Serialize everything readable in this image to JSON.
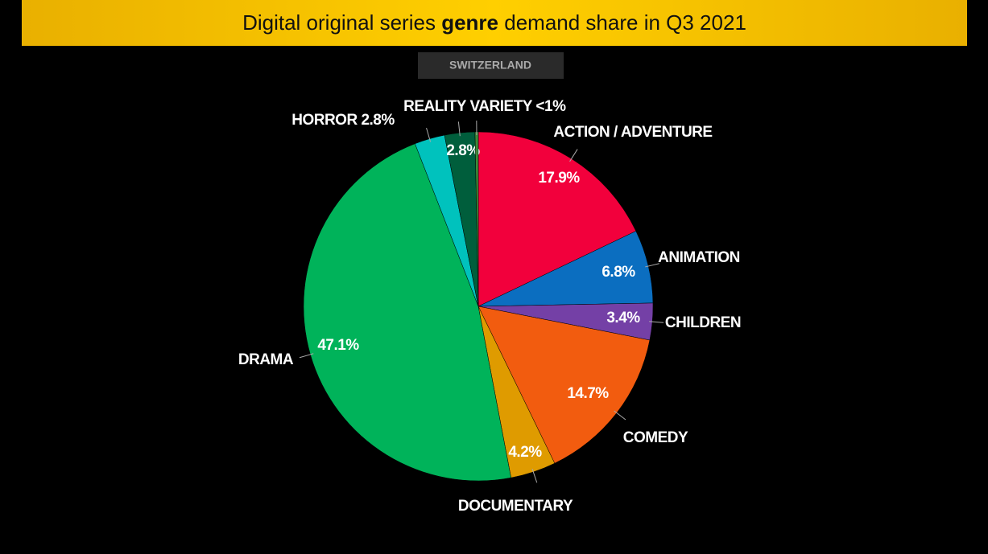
{
  "chart_data": {
    "type": "pie",
    "title": {
      "start": "Digital original series",
      "emphasis": "genre",
      "end": "demand share in Q3 2021"
    },
    "subtitle": "SWITZERLAND",
    "categories": [
      "ACTION / ADVENTURE",
      "ANIMATION",
      "CHILDREN",
      "COMEDY",
      "DOCUMENTARY",
      "DRAMA",
      "HORROR",
      "REALITY",
      "VARIETY"
    ],
    "values": [
      17.9,
      6.8,
      3.4,
      14.7,
      4.2,
      47.1,
      2.8,
      2.8,
      0.3
    ],
    "value_labels": [
      "17.9%",
      "6.8%",
      "3.4%",
      "14.7%",
      "4.2%",
      "47.1%",
      "2.8%",
      "2.8%",
      "<1%"
    ],
    "colors": [
      "#f2003c",
      "#0b6ec0",
      "#7440a6",
      "#f25c0f",
      "#df9b00",
      "#00b35a",
      "#00c2bd",
      "#005e3c",
      "#3f8a3a"
    ]
  }
}
